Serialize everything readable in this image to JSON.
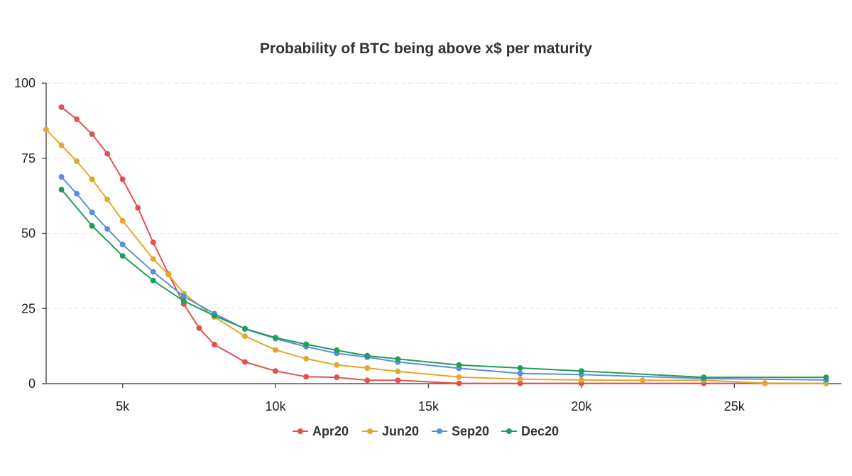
{
  "chart_data": {
    "type": "line",
    "title": "Probability of BTC being above x$ per maturity",
    "xlabel": "",
    "ylabel": "",
    "xlim": [
      2500,
      28500
    ],
    "ylim": [
      0,
      100
    ],
    "x_ticks": [
      5000,
      10000,
      15000,
      20000,
      25000
    ],
    "x_tick_labels": [
      "5k",
      "10k",
      "15k",
      "20k",
      "25k"
    ],
    "y_ticks": [
      0,
      25,
      50,
      75,
      100
    ],
    "y_tick_labels": [
      "0",
      "25",
      "50",
      "75",
      "100"
    ],
    "grid": "horizontal dashed",
    "legend_position": "bottom-center",
    "series": [
      {
        "name": "Apr20",
        "color": "#e05252",
        "points": [
          [
            3000,
            92
          ],
          [
            3500,
            88
          ],
          [
            4000,
            83
          ],
          [
            4500,
            76.5
          ],
          [
            5000,
            68
          ],
          [
            5500,
            58.5
          ],
          [
            6000,
            47
          ],
          [
            6500,
            36.5
          ],
          [
            7000,
            26.5
          ],
          [
            7500,
            18.5
          ],
          [
            8000,
            13
          ],
          [
            9000,
            7.2
          ],
          [
            10000,
            4.2
          ],
          [
            11000,
            2.3
          ],
          [
            12000,
            2.1
          ],
          [
            13000,
            1.1
          ],
          [
            14000,
            1.1
          ],
          [
            16000,
            0.1
          ],
          [
            18000,
            0.1
          ],
          [
            20000,
            0.1
          ],
          [
            24000,
            0.1
          ],
          [
            26000,
            0.1
          ],
          [
            28000,
            0.1
          ]
        ]
      },
      {
        "name": "Jun20",
        "color": "#e3a82b",
        "points": [
          [
            2500,
            84.5
          ],
          [
            3000,
            79.3
          ],
          [
            3500,
            74
          ],
          [
            4000,
            68
          ],
          [
            4500,
            61.3
          ],
          [
            5000,
            54.2
          ],
          [
            6000,
            41.5
          ],
          [
            6500,
            36.3
          ],
          [
            7000,
            30
          ],
          [
            8000,
            22.2
          ],
          [
            9000,
            15.8
          ],
          [
            10000,
            11.2
          ],
          [
            11000,
            8.3
          ],
          [
            12000,
            6.2
          ],
          [
            13000,
            5.2
          ],
          [
            14000,
            4.1
          ],
          [
            16000,
            2.2
          ],
          [
            18000,
            1.5
          ],
          [
            20000,
            1.2
          ],
          [
            22000,
            1.1
          ],
          [
            24000,
            1.1
          ],
          [
            26000,
            0.2
          ],
          [
            28000,
            0.1
          ]
        ]
      },
      {
        "name": "Sep20",
        "color": "#5b8fde",
        "points": [
          [
            3000,
            68.8
          ],
          [
            3500,
            63.2
          ],
          [
            4000,
            57
          ],
          [
            4500,
            51.5
          ],
          [
            5000,
            46.3
          ],
          [
            6000,
            37.2
          ],
          [
            7000,
            29
          ],
          [
            8000,
            23.3
          ],
          [
            9000,
            18.2
          ],
          [
            10000,
            15
          ],
          [
            11000,
            12.3
          ],
          [
            12000,
            10.1
          ],
          [
            13000,
            8.8
          ],
          [
            14000,
            7.2
          ],
          [
            16000,
            5.1
          ],
          [
            18000,
            3.4
          ],
          [
            20000,
            3
          ],
          [
            24000,
            1.7
          ],
          [
            28000,
            1.2
          ]
        ]
      },
      {
        "name": "Dec20",
        "color": "#1f9e5a",
        "points": [
          [
            3000,
            64.6
          ],
          [
            4000,
            52.5
          ],
          [
            5000,
            42.5
          ],
          [
            6000,
            34.3
          ],
          [
            7000,
            27.5
          ],
          [
            8000,
            22.6
          ],
          [
            9000,
            18.3
          ],
          [
            10000,
            15.3
          ],
          [
            11000,
            13.1
          ],
          [
            12000,
            11.1
          ],
          [
            13000,
            9.3
          ],
          [
            14000,
            8.2
          ],
          [
            16000,
            6.2
          ],
          [
            18000,
            5.2
          ],
          [
            20000,
            4.2
          ],
          [
            24000,
            2.1
          ],
          [
            28000,
            2.1
          ]
        ]
      }
    ]
  }
}
